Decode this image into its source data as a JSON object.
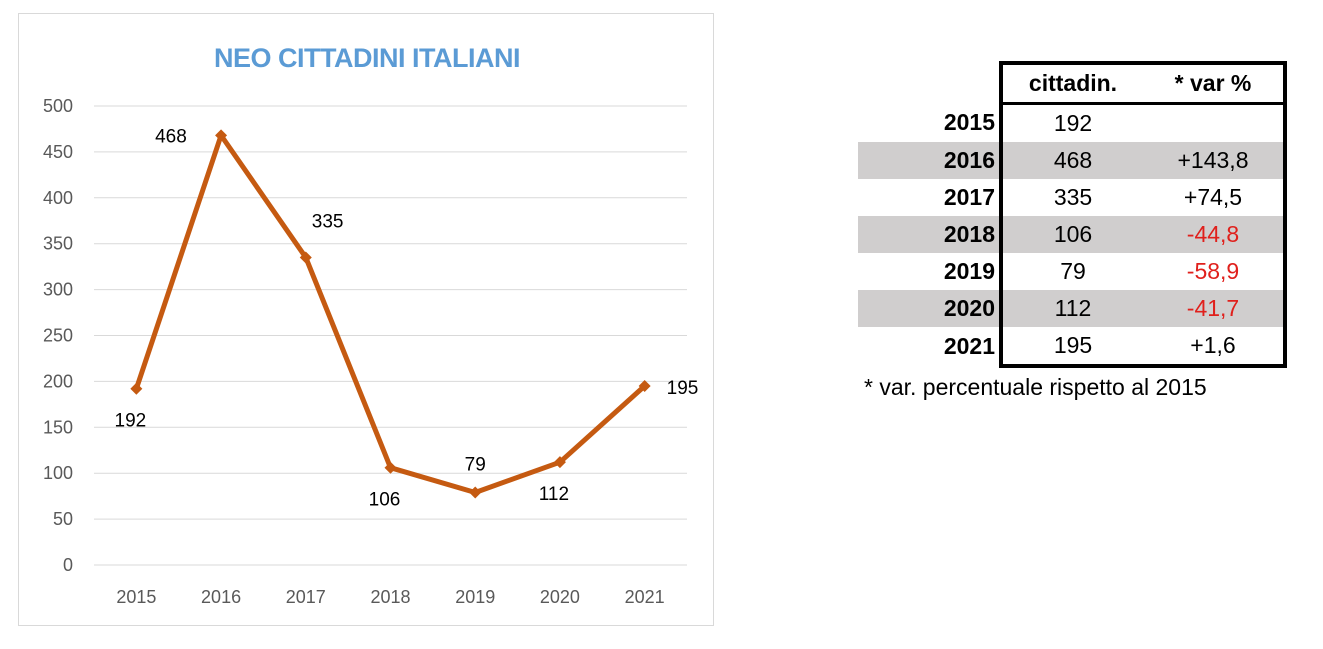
{
  "chart_data": {
    "type": "line",
    "title": "NEO CITTADINI ITALIANI",
    "categories": [
      "2015",
      "2016",
      "2017",
      "2018",
      "2019",
      "2020",
      "2021"
    ],
    "values": [
      192,
      468,
      335,
      106,
      79,
      112,
      195
    ],
    "data_labels": [
      "192",
      "468",
      "335",
      "106",
      "79",
      "112",
      "195"
    ],
    "ylim": [
      0,
      500
    ],
    "yticks": [
      "0",
      "50",
      "100",
      "150",
      "200",
      "250",
      "300",
      "350",
      "400",
      "450",
      "500"
    ],
    "grid": true,
    "legend": "none",
    "colors": {
      "line": "#c55a11",
      "title": "#5b9bd5",
      "grid": "#d9d9d9",
      "axis_text": "#595959"
    }
  },
  "table": {
    "headers": [
      "cittadin.",
      "* var %"
    ],
    "rows": [
      {
        "year": "2015",
        "value": "192",
        "var": ""
      },
      {
        "year": "2016",
        "value": "468",
        "var": "+143,8"
      },
      {
        "year": "2017",
        "value": "335",
        "var": "+74,5"
      },
      {
        "year": "2018",
        "value": "106",
        "var": "-44,8"
      },
      {
        "year": "2019",
        "value": "79",
        "var": "-58,9"
      },
      {
        "year": "2020",
        "value": "112",
        "var": "-41,7"
      },
      {
        "year": "2021",
        "value": "195",
        "var": "+1,6"
      }
    ],
    "shaded_color": "#d0cece",
    "negative_color": "#e0201c"
  },
  "footnote": "* var. percentuale rispetto al 2015"
}
